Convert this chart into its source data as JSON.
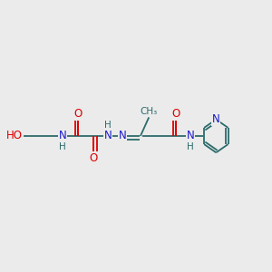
{
  "bg_color": "#ebebeb",
  "bond_color": "#2d6b6b",
  "O_color": "#dd0000",
  "N_color": "#1a1acc",
  "fs_main": 8.5,
  "fs_small": 7.5,
  "lw": 1.3,
  "xlim": [
    0,
    12
  ],
  "ylim": [
    0,
    10
  ],
  "y_main": 5.0
}
